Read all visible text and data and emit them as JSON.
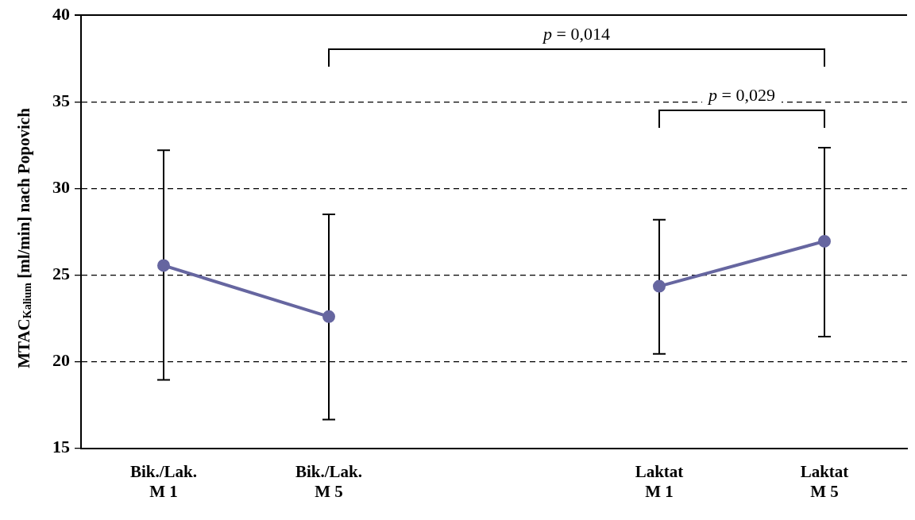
{
  "chart_data": {
    "type": "line",
    "ylabel": "MTAC$_{Kalium}$ [ml/min] nach Popovich",
    "categories": [
      "Bik./Lak. M 1",
      "Bik./Lak. M 5",
      null,
      "Laktat M 1",
      "Laktat M 5"
    ],
    "series": [
      {
        "color": "#6666a0",
        "values": [
          25.55,
          22.6,
          null,
          24.35,
          26.95
        ],
        "errors": [
          [
            18.95,
            32.2
          ],
          [
            16.65,
            28.5
          ],
          null,
          [
            20.45,
            28.2
          ],
          [
            21.45,
            32.35
          ]
        ]
      }
    ],
    "ylim": [
      15,
      40
    ],
    "yticks": [
      15,
      20,
      25,
      30,
      35,
      40
    ],
    "grid": "y",
    "marker": "circle",
    "line_style": "solid",
    "annotations": [
      "p = 0,014",
      "p = 0,029"
    ]
  }
}
